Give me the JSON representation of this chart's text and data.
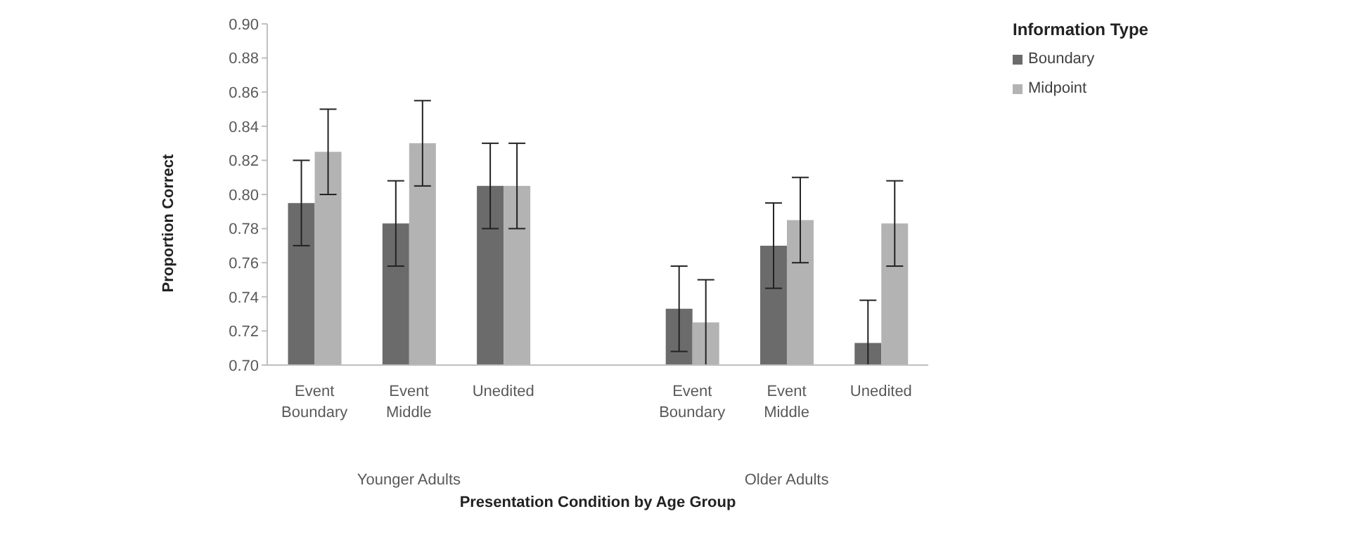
{
  "chart_data": {
    "type": "bar",
    "xlabel": "Presentation Condition by Age Group",
    "ylabel": "Proportion Correct",
    "legend_title": "Information Type",
    "categories": [
      "Event Boundary",
      "Event Middle",
      "Unedited",
      null,
      "Event Boundary",
      "Event Middle",
      "Unedited"
    ],
    "series": [
      {
        "name": "Boundary",
        "color": "#6b6b6b",
        "values": [
          0.795,
          0.783,
          0.805,
          null,
          0.733,
          0.77,
          0.713
        ],
        "errors": [
          0.025,
          0.025,
          0.025,
          null,
          0.025,
          0.025,
          [
            0.7,
            0.738
          ]
        ]
      },
      {
        "name": "Midpoint",
        "color": "#b3b3b3",
        "values": [
          0.825,
          0.83,
          0.805,
          null,
          0.725,
          0.785,
          0.783
        ],
        "errors": [
          0.025,
          0.025,
          0.025,
          null,
          0.025,
          0.025,
          0.025
        ]
      }
    ],
    "ylim": [
      0.7,
      0.9
    ],
    "yticks": [
      {
        "value": 0.7,
        "label": "0.70"
      },
      {
        "value": 0.72,
        "label": "0.72"
      },
      {
        "value": 0.74,
        "label": "0.74"
      },
      {
        "value": 0.76,
        "label": "0.76"
      },
      {
        "value": 0.78,
        "label": "0.78"
      },
      {
        "value": 0.8,
        "label": "0.80"
      },
      {
        "value": 0.82,
        "label": "0.82"
      },
      {
        "value": 0.84,
        "label": "0.84"
      },
      {
        "value": 0.86,
        "label": "0.86"
      },
      {
        "value": 0.88,
        "label": "0.88"
      },
      {
        "value": 0.9,
        "label": "0.90"
      }
    ],
    "grid": false,
    "legend": "top right",
    "annotations": [
      "Younger Adults",
      "Older Adults"
    ]
  }
}
